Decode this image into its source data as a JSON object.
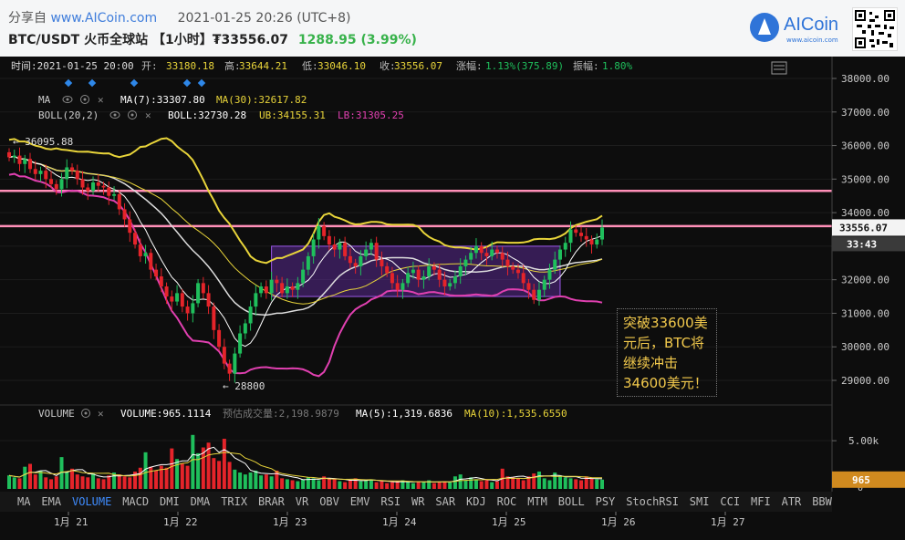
{
  "header": {
    "share_label": "分享自",
    "site": "www.AICoin.com",
    "datetime": "2021-01-25 20:26 (UTC+8)",
    "pair": "BTC/USDT",
    "exchange": "火币全球站",
    "interval": "【1小时】",
    "price": "₮33556.07",
    "change": "1288.95 (3.99%)",
    "logo_text": "AICoin",
    "logo_sub": "www.aicoin.com"
  },
  "info_bar": {
    "time": "时间:2021-01-25 20:00",
    "open_label": "开:",
    "open": "33180.18",
    "high_label": "高:",
    "high": "33644.21",
    "low_label": "低:",
    "low": "33046.10",
    "close_label": "收:",
    "close": "33556.07",
    "pct_label": "涨幅:",
    "pct": "1.13%(375.89)",
    "amp_label": "振幅:",
    "amp": "1.80%"
  },
  "ma_legend": {
    "name": "MA",
    "ma7": "MA(7):33307.80",
    "ma30": "MA(30):32617.82"
  },
  "boll_legend": {
    "name": "BOLL(20,2)",
    "boll": "BOLL:32730.28",
    "ub": "UB:34155.31",
    "lb": "LB:31305.25"
  },
  "vol_legend": {
    "name": "VOLUME",
    "volume": "VOLUME:965.1114",
    "est": "预估成交量:2,198.9879",
    "ma5": "MA(5):1,319.6836",
    "ma10": "MA(10):1,535.6550"
  },
  "annotation": "突破33600美元后，BTC将继续冲击34600美元！",
  "indicators": [
    "MA",
    "EMA",
    "VOLUME",
    "MACD",
    "DMI",
    "DMA",
    "TRIX",
    "BRAR",
    "VR",
    "OBV",
    "EMV",
    "RSI",
    "WR",
    "SAR",
    "KDJ",
    "ROC",
    "MTM",
    "BOLL",
    "PSY",
    "StochRSI",
    "SMI",
    "CCI",
    "MFI",
    "ATR",
    "BBW"
  ],
  "active_indicator": "VOLUME",
  "colors": {
    "up": "#1fbf5c",
    "down": "#e5242a",
    "ma7": "#ffffff",
    "ma30": "#e8d43a",
    "ub": "#e8d43a",
    "lb": "#e040b0",
    "hline": "#ff8fb8",
    "box": "#7a35c8"
  },
  "chart_data": {
    "type": "candlestick",
    "y_ticks": [
      "38000.00",
      "37000.00",
      "36000.00",
      "35000.00",
      "34000.00",
      "33000.00",
      "32000.00",
      "31000.00",
      "30000.00",
      "29000.00"
    ],
    "x_ticks": [
      "1月 21",
      "1月 22",
      "1月 23",
      "1月 24",
      "1月 25",
      "1月 26",
      "1月 27"
    ],
    "price_tag": "33556.07",
    "countdown_tag": "33:43",
    "max_label": "36095.88",
    "min_label": "28800",
    "vol_tick": "5.00k",
    "vol_tag": "965",
    "vol_zero": "0",
    "hlines": [
      34650,
      33600
    ],
    "box": {
      "from": 33000,
      "to": 31500
    },
    "close_series": [
      35650,
      35700,
      35450,
      35600,
      35300,
      35150,
      35250,
      35000,
      34850,
      34700,
      35000,
      35350,
      35250,
      35000,
      34750,
      34650,
      34900,
      34800,
      34750,
      34500,
      34550,
      34100,
      33800,
      33400,
      33050,
      32700,
      32800,
      32300,
      32100,
      31800,
      31500,
      31350,
      31600,
      31200,
      31000,
      31300,
      31900,
      31600,
      31200,
      30500,
      30000,
      29500,
      29200,
      29800,
      30400,
      30700,
      31200,
      31600,
      31800,
      31600,
      32000,
      31900,
      31600,
      31800,
      31700,
      31900,
      32300,
      32700,
      33200,
      33600,
      33300,
      33050,
      32900,
      33100,
      32700,
      32500,
      32400,
      32700,
      32900,
      33100,
      32600,
      32400,
      32200,
      31900,
      31700,
      31900,
      32200,
      32300,
      32000,
      32100,
      32400,
      32300,
      32000,
      31800,
      31900,
      32100,
      32400,
      32600,
      32800,
      33000,
      32800,
      32700,
      32900,
      32800,
      32600,
      32400,
      32300,
      32200,
      31900,
      31700,
      31400,
      31700,
      32000,
      32300,
      32600,
      32900,
      33100,
      33500,
      33400,
      33300,
      33200,
      33050,
      33200,
      33556
    ],
    "volumes": [
      1400,
      1200,
      1100,
      2300,
      2600,
      1500,
      1900,
      1200,
      1000,
      1300,
      3300,
      1800,
      2100,
      1500,
      1300,
      1200,
      1600,
      1100,
      1000,
      1400,
      1700,
      1500,
      1300,
      1200,
      1800,
      2200,
      3800,
      2300,
      1900,
      2400,
      2200,
      4200,
      3100,
      2600,
      2400,
      5600,
      3700,
      4300,
      4800,
      3200,
      2900,
      5200,
      2800,
      2000,
      1700,
      1500,
      1700,
      1900,
      1400,
      1500,
      1300,
      1900,
      1100,
      1000,
      900,
      800,
      1000,
      1200,
      1100,
      900,
      1300,
      1100,
      1000,
      800,
      700,
      900,
      1100,
      800,
      900,
      1000,
      700,
      800,
      600,
      700,
      800,
      900,
      700,
      600,
      800,
      700,
      900,
      600,
      700,
      800,
      700,
      1300,
      1500,
      900,
      1200,
      1000,
      800,
      900,
      700,
      800,
      2100,
      1300,
      1200,
      1100,
      900,
      1300,
      1600,
      1800,
      1100,
      900,
      1700,
      1400,
      1200,
      1100,
      1000,
      900,
      1300,
      1100,
      1000,
      965
    ]
  }
}
